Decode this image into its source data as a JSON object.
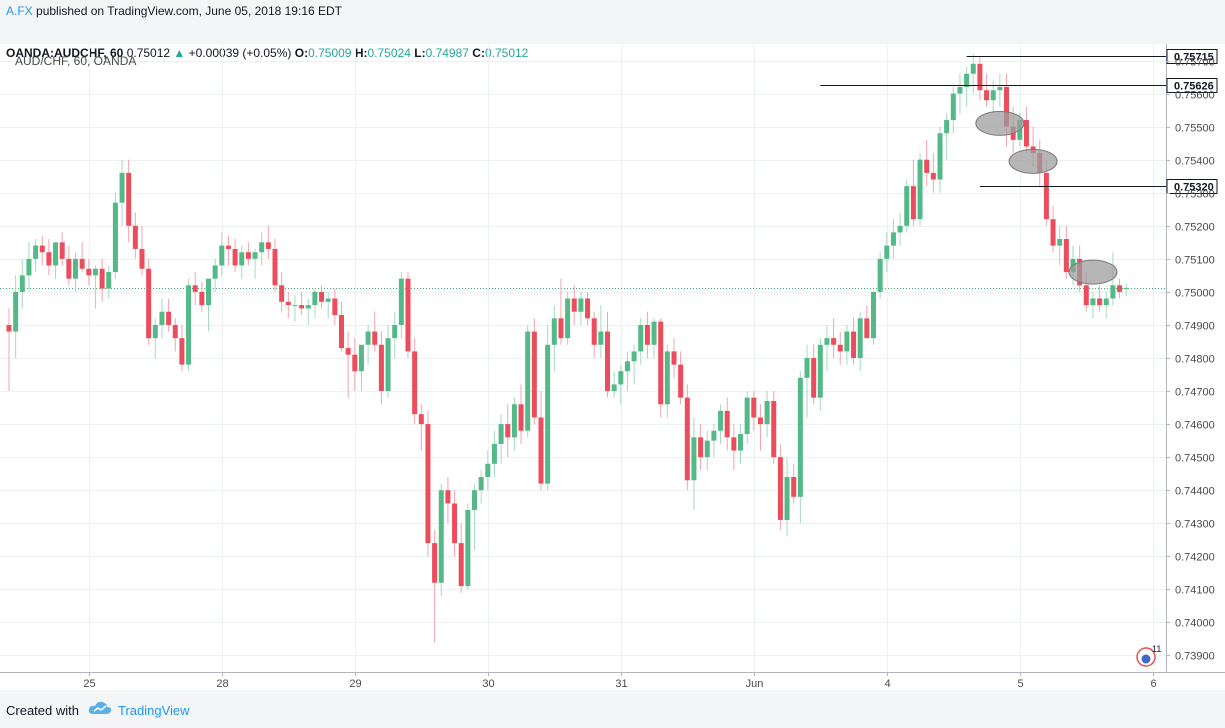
{
  "header": {
    "author": "A.FX",
    "published": "published on TradingView.com, June 05, 2018 19:16 EDT",
    "symbol": "OANDA:AUDCHF, 60",
    "price": "0.75012",
    "change": "+0.00039 (+0.05%)",
    "o_label": "O:",
    "o_value": "0.75009",
    "h_label": "H:",
    "h_value": "0.75024",
    "l_label": "L:",
    "l_value": "0.74987",
    "c_label": "C:",
    "c_value": "0.75012"
  },
  "chart_title": "AUD/CHF, 60, OANDA",
  "footer": {
    "created": "Created with",
    "brand": "TradingView"
  },
  "badge_count": "11",
  "colors": {
    "up": "#53b987",
    "down": "#eb4d5c",
    "grid": "#eef1f3",
    "hline": "#131722",
    "lastprice": "#3ca66e"
  },
  "chart_data": {
    "type": "candlestick",
    "ylim": [
      0.7385,
      0.7575
    ],
    "y_ticks": [
      "0.73900",
      "0.74000",
      "0.74100",
      "0.74200",
      "0.74300",
      "0.74400",
      "0.74500",
      "0.74600",
      "0.74700",
      "0.74800",
      "0.74900",
      "0.75000",
      "0.75100",
      "0.75200",
      "0.75300",
      "0.75400",
      "0.75500",
      "0.75600",
      "0.75700"
    ],
    "x_ticks": [
      {
        "label": "25",
        "index": 12
      },
      {
        "label": "28",
        "index": 32
      },
      {
        "label": "29",
        "index": 52
      },
      {
        "label": "30",
        "index": 72
      },
      {
        "label": "31",
        "index": 92
      },
      {
        "label": "Jun",
        "index": 112
      },
      {
        "label": "4",
        "index": 132
      },
      {
        "label": "5",
        "index": 152
      },
      {
        "label": "6",
        "index": 172
      }
    ],
    "horizontal_lines": [
      {
        "value": 0.75715,
        "label": "0.75715",
        "from_index": 144
      },
      {
        "value": 0.75626,
        "label": "0.75626",
        "from_index": 122
      },
      {
        "value": 0.7532,
        "label": "0.75320",
        "from_index": 146
      }
    ],
    "last_price": 0.75012,
    "highlights": [
      {
        "index": 149,
        "value": 0.7551
      },
      {
        "index": 154,
        "value": 0.75395
      },
      {
        "index": 163,
        "value": 0.7506
      }
    ],
    "candles": [
      [
        0.749,
        0.7495,
        0.747,
        0.7488
      ],
      [
        0.7488,
        0.7505,
        0.748,
        0.75
      ],
      [
        0.75,
        0.751,
        0.7495,
        0.7505
      ],
      [
        0.7505,
        0.7515,
        0.75,
        0.751
      ],
      [
        0.751,
        0.7516,
        0.7506,
        0.7514
      ],
      [
        0.7514,
        0.7517,
        0.7508,
        0.7512
      ],
      [
        0.7512,
        0.7516,
        0.7505,
        0.7508
      ],
      [
        0.7508,
        0.7514,
        0.7504,
        0.7515
      ],
      [
        0.7515,
        0.7518,
        0.7508,
        0.751
      ],
      [
        0.751,
        0.7514,
        0.7502,
        0.7504
      ],
      [
        0.7504,
        0.7512,
        0.75,
        0.751
      ],
      [
        0.751,
        0.7515,
        0.7506,
        0.7507
      ],
      [
        0.7507,
        0.751,
        0.7502,
        0.7505
      ],
      [
        0.7505,
        0.7508,
        0.7495,
        0.7507
      ],
      [
        0.7507,
        0.751,
        0.7497,
        0.7501
      ],
      [
        0.7501,
        0.7508,
        0.7498,
        0.7506
      ],
      [
        0.7506,
        0.753,
        0.7504,
        0.7527
      ],
      [
        0.7527,
        0.754,
        0.752,
        0.7536
      ],
      [
        0.7536,
        0.754,
        0.7515,
        0.752
      ],
      [
        0.752,
        0.7524,
        0.751,
        0.7513
      ],
      [
        0.7513,
        0.752,
        0.7505,
        0.7507
      ],
      [
        0.7507,
        0.751,
        0.7484,
        0.7486
      ],
      [
        0.7486,
        0.7492,
        0.748,
        0.749
      ],
      [
        0.749,
        0.7498,
        0.7486,
        0.7494
      ],
      [
        0.7494,
        0.7498,
        0.7488,
        0.749
      ],
      [
        0.749,
        0.7492,
        0.7482,
        0.7486
      ],
      [
        0.7486,
        0.749,
        0.7476,
        0.7478
      ],
      [
        0.7478,
        0.7504,
        0.7476,
        0.7502
      ],
      [
        0.7502,
        0.7506,
        0.7496,
        0.75
      ],
      [
        0.75,
        0.7503,
        0.7494,
        0.7496
      ],
      [
        0.7496,
        0.7503,
        0.7488,
        0.7504
      ],
      [
        0.7504,
        0.751,
        0.75,
        0.7508
      ],
      [
        0.7508,
        0.7518,
        0.7505,
        0.7514
      ],
      [
        0.7514,
        0.7517,
        0.7508,
        0.7513
      ],
      [
        0.7513,
        0.7516,
        0.7506,
        0.7508
      ],
      [
        0.7508,
        0.7514,
        0.7504,
        0.7512
      ],
      [
        0.7512,
        0.7515,
        0.7508,
        0.751
      ],
      [
        0.751,
        0.7513,
        0.7504,
        0.7512
      ],
      [
        0.7512,
        0.7518,
        0.7508,
        0.7515
      ],
      [
        0.7515,
        0.752,
        0.751,
        0.7513
      ],
      [
        0.7513,
        0.7516,
        0.75,
        0.7502
      ],
      [
        0.7502,
        0.7506,
        0.7494,
        0.7497
      ],
      [
        0.7497,
        0.75,
        0.7492,
        0.7496
      ],
      [
        0.7496,
        0.7499,
        0.7491,
        0.7496
      ],
      [
        0.7496,
        0.75,
        0.7493,
        0.7495
      ],
      [
        0.7495,
        0.7498,
        0.749,
        0.7496
      ],
      [
        0.7496,
        0.7501,
        0.7492,
        0.75
      ],
      [
        0.75,
        0.7502,
        0.7495,
        0.7497
      ],
      [
        0.7497,
        0.75,
        0.7492,
        0.7498
      ],
      [
        0.7498,
        0.7501,
        0.749,
        0.7493
      ],
      [
        0.7493,
        0.7497,
        0.7482,
        0.7483
      ],
      [
        0.7483,
        0.7488,
        0.7468,
        0.7481
      ],
      [
        0.7481,
        0.7486,
        0.747,
        0.7476
      ],
      [
        0.7476,
        0.7484,
        0.747,
        0.7484
      ],
      [
        0.7484,
        0.749,
        0.7478,
        0.7488
      ],
      [
        0.7488,
        0.7494,
        0.7482,
        0.7484
      ],
      [
        0.7484,
        0.7488,
        0.7466,
        0.747
      ],
      [
        0.747,
        0.749,
        0.7468,
        0.7486
      ],
      [
        0.7486,
        0.7494,
        0.748,
        0.749
      ],
      [
        0.749,
        0.7506,
        0.7486,
        0.7504
      ],
      [
        0.7504,
        0.7506,
        0.748,
        0.7482
      ],
      [
        0.7482,
        0.7486,
        0.746,
        0.7463
      ],
      [
        0.7463,
        0.7466,
        0.7452,
        0.746
      ],
      [
        0.746,
        0.7464,
        0.742,
        0.7424
      ],
      [
        0.7424,
        0.7428,
        0.7394,
        0.7412
      ],
      [
        0.7412,
        0.7442,
        0.7408,
        0.744
      ],
      [
        0.744,
        0.7444,
        0.743,
        0.7436
      ],
      [
        0.7436,
        0.744,
        0.742,
        0.7424
      ],
      [
        0.7424,
        0.743,
        0.7409,
        0.7411
      ],
      [
        0.7411,
        0.7436,
        0.741,
        0.7434
      ],
      [
        0.7434,
        0.7442,
        0.7422,
        0.744
      ],
      [
        0.744,
        0.7446,
        0.7436,
        0.7444
      ],
      [
        0.7444,
        0.7452,
        0.744,
        0.7448
      ],
      [
        0.7448,
        0.7458,
        0.7444,
        0.7454
      ],
      [
        0.7454,
        0.7463,
        0.7448,
        0.746
      ],
      [
        0.746,
        0.7466,
        0.745,
        0.7456
      ],
      [
        0.7456,
        0.7468,
        0.7452,
        0.7466
      ],
      [
        0.7466,
        0.7472,
        0.7454,
        0.7458
      ],
      [
        0.7458,
        0.749,
        0.7456,
        0.7488
      ],
      [
        0.7488,
        0.7492,
        0.746,
        0.7462
      ],
      [
        0.7462,
        0.747,
        0.744,
        0.7442
      ],
      [
        0.7442,
        0.749,
        0.744,
        0.7484
      ],
      [
        0.7484,
        0.7496,
        0.7476,
        0.7492
      ],
      [
        0.7492,
        0.7504,
        0.7484,
        0.7486
      ],
      [
        0.7486,
        0.75,
        0.7484,
        0.7498
      ],
      [
        0.7498,
        0.7502,
        0.749,
        0.7494
      ],
      [
        0.7494,
        0.75,
        0.749,
        0.7498
      ],
      [
        0.7498,
        0.75,
        0.749,
        0.7492
      ],
      [
        0.7492,
        0.7494,
        0.748,
        0.7484
      ],
      [
        0.7484,
        0.7496,
        0.748,
        0.7488
      ],
      [
        0.7488,
        0.7494,
        0.7468,
        0.747
      ],
      [
        0.747,
        0.7476,
        0.7468,
        0.7472
      ],
      [
        0.7472,
        0.7478,
        0.7466,
        0.7476
      ],
      [
        0.7476,
        0.7482,
        0.747,
        0.7479
      ],
      [
        0.7479,
        0.7484,
        0.7472,
        0.7482
      ],
      [
        0.7482,
        0.7492,
        0.7478,
        0.749
      ],
      [
        0.749,
        0.7494,
        0.748,
        0.7484
      ],
      [
        0.7484,
        0.7492,
        0.748,
        0.7491
      ],
      [
        0.7491,
        0.7492,
        0.7462,
        0.7466
      ],
      [
        0.7466,
        0.7484,
        0.7462,
        0.7482
      ],
      [
        0.7482,
        0.7486,
        0.7474,
        0.7478
      ],
      [
        0.7478,
        0.7482,
        0.7466,
        0.7468
      ],
      [
        0.7468,
        0.7472,
        0.744,
        0.7443
      ],
      [
        0.7443,
        0.7462,
        0.7434,
        0.7456
      ],
      [
        0.7456,
        0.746,
        0.7446,
        0.745
      ],
      [
        0.745,
        0.7458,
        0.7446,
        0.7455
      ],
      [
        0.7455,
        0.746,
        0.745,
        0.7458
      ],
      [
        0.7458,
        0.7466,
        0.7454,
        0.7464
      ],
      [
        0.7464,
        0.7468,
        0.7452,
        0.7456
      ],
      [
        0.7456,
        0.746,
        0.7446,
        0.7452
      ],
      [
        0.7452,
        0.746,
        0.7448,
        0.7457
      ],
      [
        0.7457,
        0.747,
        0.7454,
        0.7468
      ],
      [
        0.7468,
        0.747,
        0.7458,
        0.7462
      ],
      [
        0.7462,
        0.7466,
        0.7452,
        0.746
      ],
      [
        0.746,
        0.747,
        0.7456,
        0.7467
      ],
      [
        0.7467,
        0.747,
        0.7448,
        0.745
      ],
      [
        0.745,
        0.7454,
        0.7428,
        0.7431
      ],
      [
        0.7431,
        0.745,
        0.7426,
        0.7444
      ],
      [
        0.7444,
        0.7448,
        0.7436,
        0.7438
      ],
      [
        0.7438,
        0.7476,
        0.743,
        0.7474
      ],
      [
        0.7474,
        0.7484,
        0.7462,
        0.748
      ],
      [
        0.748,
        0.7484,
        0.7466,
        0.7468
      ],
      [
        0.7468,
        0.7486,
        0.7464,
        0.7484
      ],
      [
        0.7484,
        0.749,
        0.7476,
        0.7486
      ],
      [
        0.7486,
        0.7492,
        0.748,
        0.7484
      ],
      [
        0.7484,
        0.7488,
        0.7478,
        0.7482
      ],
      [
        0.7482,
        0.749,
        0.7478,
        0.7488
      ],
      [
        0.7488,
        0.7492,
        0.7478,
        0.748
      ],
      [
        0.748,
        0.7494,
        0.7476,
        0.7492
      ],
      [
        0.7492,
        0.7496,
        0.7486,
        0.7486
      ],
      [
        0.7486,
        0.75,
        0.7484,
        0.75
      ],
      [
        0.75,
        0.7512,
        0.7498,
        0.751
      ],
      [
        0.751,
        0.7518,
        0.7506,
        0.7514
      ],
      [
        0.7514,
        0.7522,
        0.751,
        0.7518
      ],
      [
        0.7518,
        0.7524,
        0.7514,
        0.752
      ],
      [
        0.752,
        0.7534,
        0.7518,
        0.7532
      ],
      [
        0.7532,
        0.754,
        0.752,
        0.7522
      ],
      [
        0.7522,
        0.7542,
        0.752,
        0.754
      ],
      [
        0.754,
        0.7546,
        0.7532,
        0.7536
      ],
      [
        0.7536,
        0.7542,
        0.753,
        0.7534
      ],
      [
        0.7534,
        0.755,
        0.753,
        0.7548
      ],
      [
        0.7548,
        0.7554,
        0.754,
        0.7552
      ],
      [
        0.7552,
        0.7562,
        0.7548,
        0.756
      ],
      [
        0.756,
        0.7566,
        0.7554,
        0.7562
      ],
      [
        0.7562,
        0.7568,
        0.7556,
        0.7566
      ],
      [
        0.7566,
        0.7572,
        0.756,
        0.7569
      ],
      [
        0.7569,
        0.7571,
        0.7558,
        0.7561
      ],
      [
        0.7561,
        0.7566,
        0.7556,
        0.7558
      ],
      [
        0.7558,
        0.7564,
        0.7554,
        0.7561
      ],
      [
        0.7561,
        0.7566,
        0.7556,
        0.7562
      ],
      [
        0.7562,
        0.7566,
        0.7544,
        0.755
      ],
      [
        0.755,
        0.7556,
        0.7542,
        0.7546
      ],
      [
        0.7546,
        0.7554,
        0.7544,
        0.7552
      ],
      [
        0.7552,
        0.7556,
        0.7542,
        0.7544
      ],
      [
        0.7544,
        0.755,
        0.7538,
        0.7542
      ],
      [
        0.7542,
        0.7546,
        0.7532,
        0.7536
      ],
      [
        0.7536,
        0.754,
        0.752,
        0.7522
      ],
      [
        0.7522,
        0.7526,
        0.7512,
        0.7514
      ],
      [
        0.7514,
        0.752,
        0.7508,
        0.7516
      ],
      [
        0.7516,
        0.752,
        0.7504,
        0.7506
      ],
      [
        0.7506,
        0.7514,
        0.7502,
        0.751
      ],
      [
        0.751,
        0.7514,
        0.75,
        0.7502
      ],
      [
        0.7502,
        0.7506,
        0.7494,
        0.7496
      ],
      [
        0.7496,
        0.75,
        0.7492,
        0.7498
      ],
      [
        0.7498,
        0.7502,
        0.7494,
        0.7496
      ],
      [
        0.7496,
        0.75,
        0.7492,
        0.7498
      ],
      [
        0.7498,
        0.7512,
        0.7496,
        0.7502
      ],
      [
        0.7502,
        0.7504,
        0.7498,
        0.75
      ],
      [
        0.75009,
        0.75024,
        0.74987,
        0.75012
      ]
    ]
  }
}
